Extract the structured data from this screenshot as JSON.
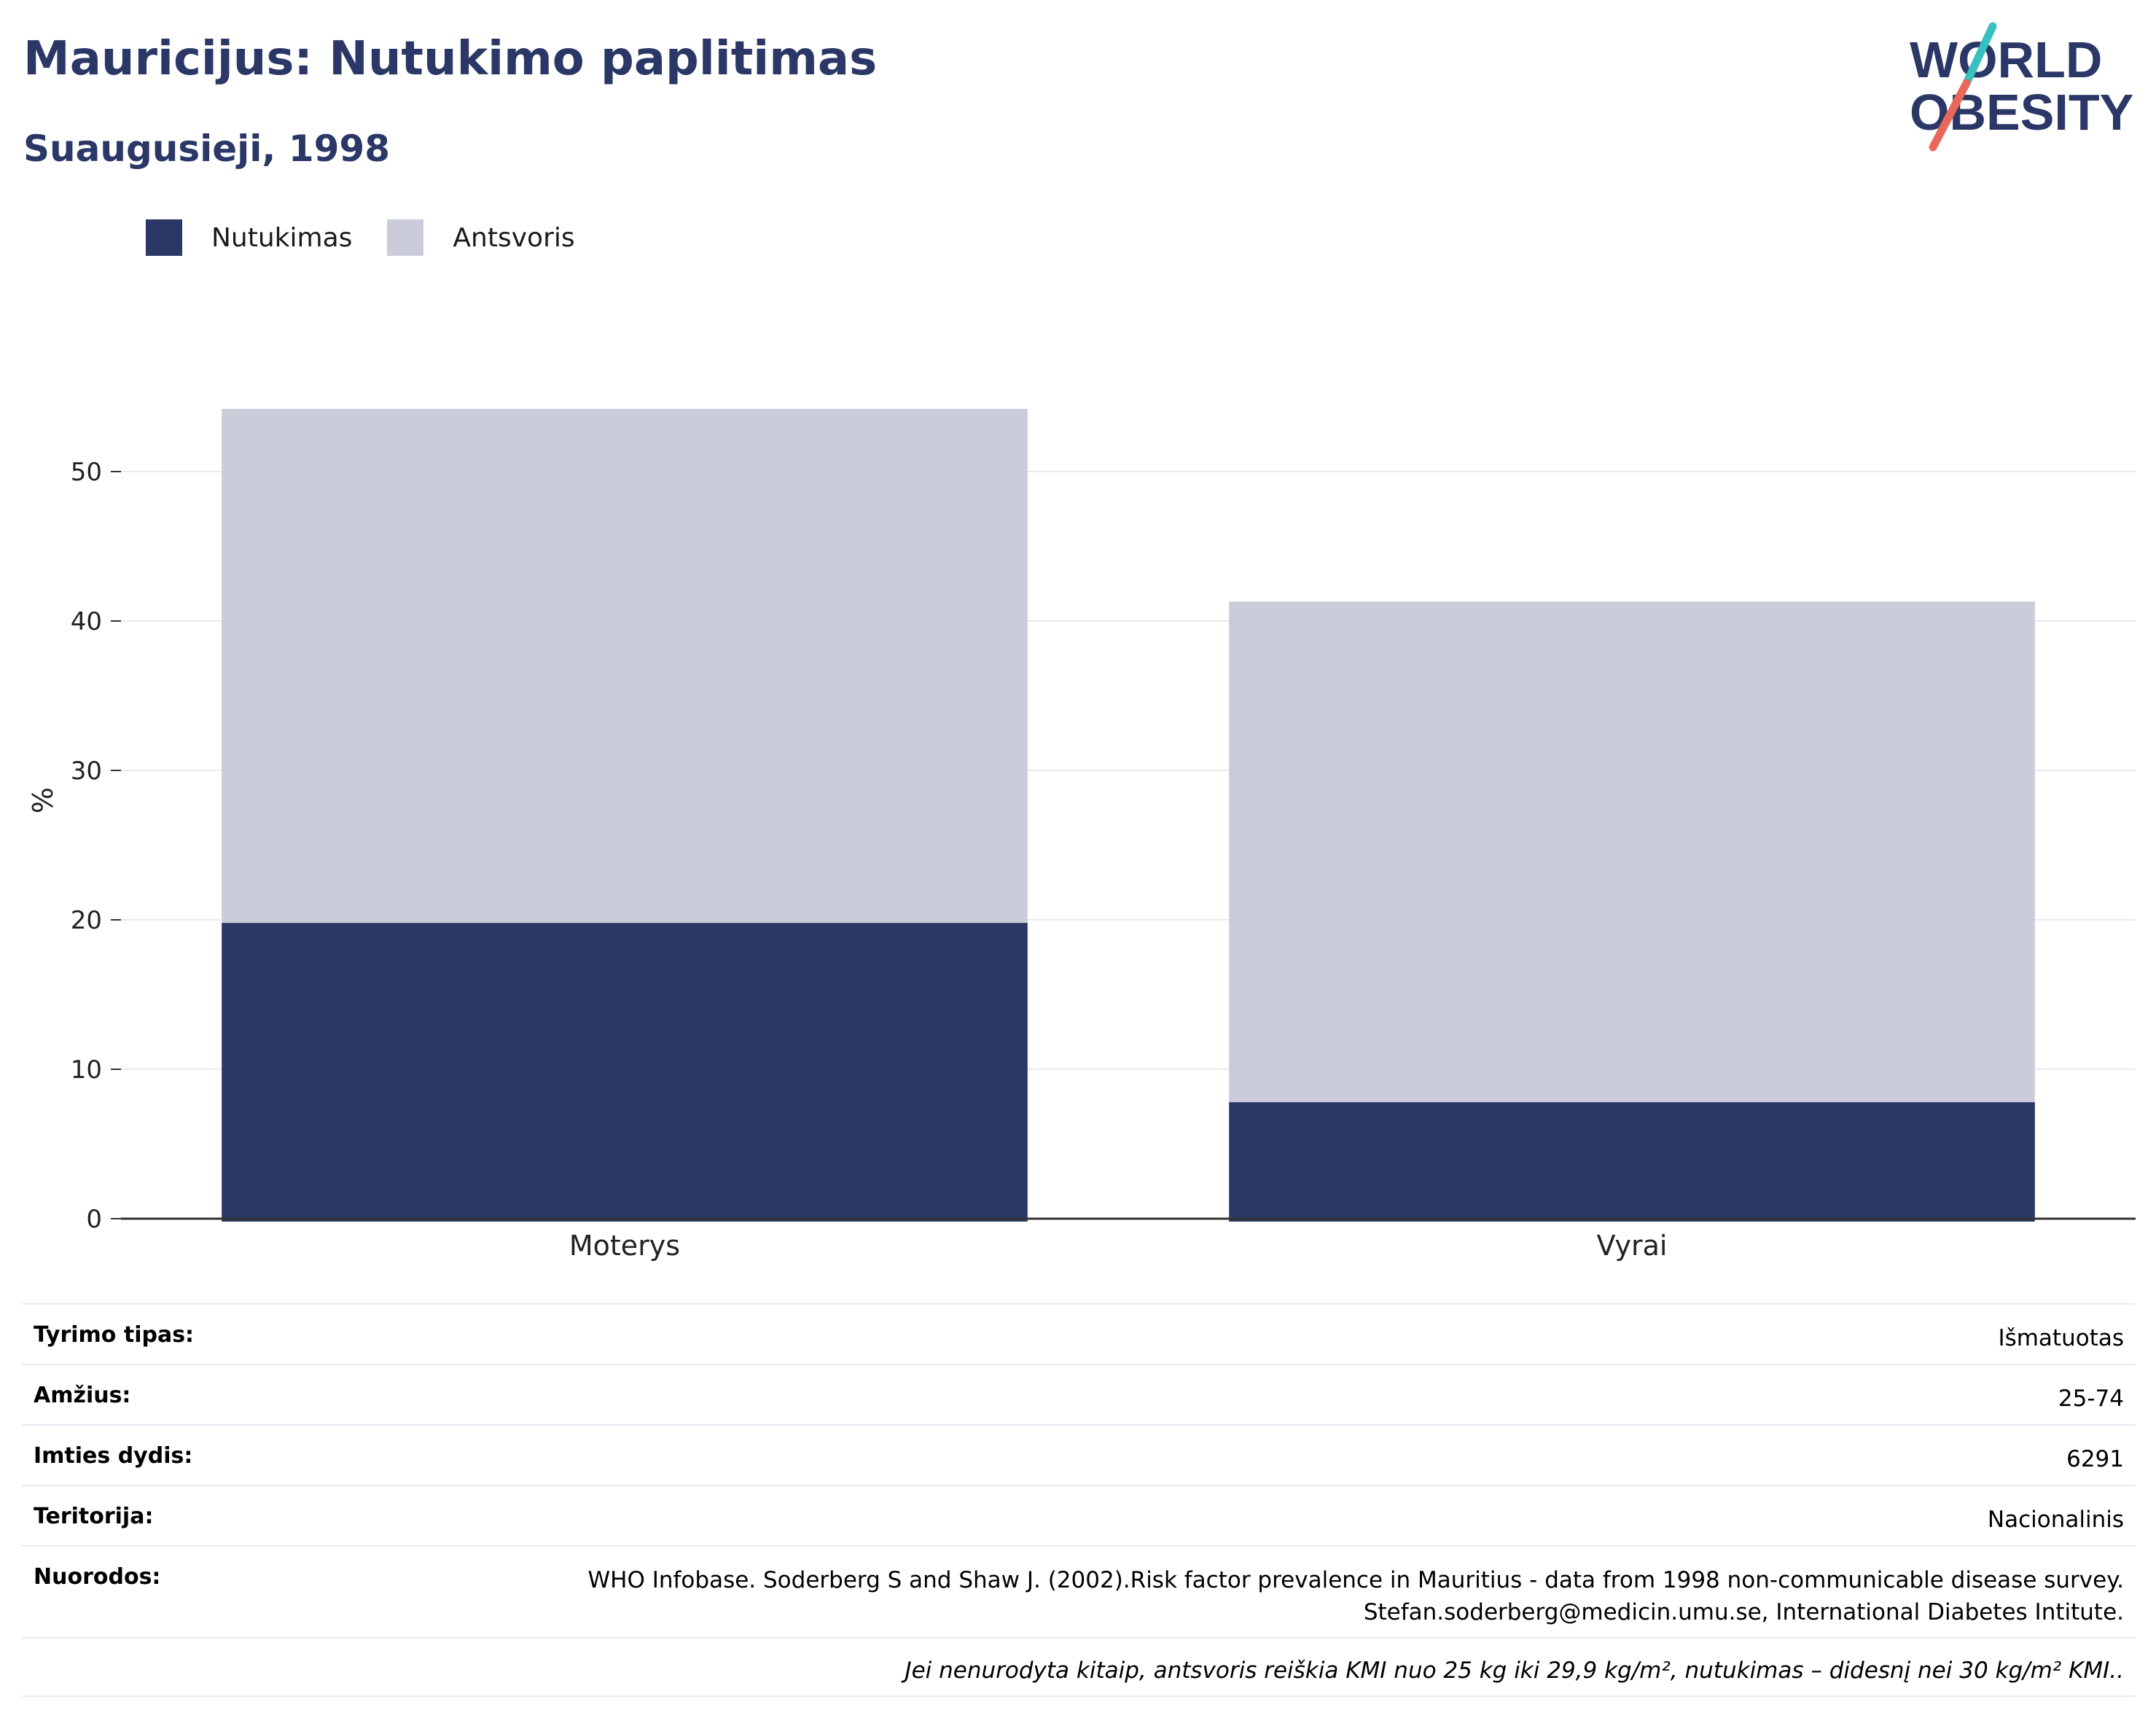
{
  "header": {
    "title": "Mauricijus: Nutukimo paplitimas",
    "subtitle": "Suaugusieji, 1998"
  },
  "logo": {
    "line1": "WORLD",
    "line2": "OBESITY"
  },
  "colors": {
    "obesity": "#2b3766",
    "overweight": "#cacdd9",
    "title": "#2b3766",
    "accent_teal": "#36c0c0",
    "accent_red": "#e8685a"
  },
  "chart_data": {
    "type": "bar",
    "stacked": true,
    "categories": [
      "Moterys",
      "Vyrai"
    ],
    "series": [
      {
        "name": "Nutukimas",
        "values": [
          19.8,
          7.8
        ]
      },
      {
        "name": "Antsvoris",
        "values": [
          34.4,
          33.5
        ]
      }
    ],
    "ylabel": "%",
    "xlabel": "",
    "ylim": [
      0,
      55
    ],
    "yticks": [
      0,
      10,
      20,
      30,
      40,
      50
    ],
    "grid": true,
    "legend_position": "top-left"
  },
  "info": {
    "survey_type": {
      "label": "Tyrimo tipas:",
      "value": "Išmatuotas"
    },
    "age": {
      "label": "Amžius:",
      "value": "25-74"
    },
    "sample_size": {
      "label": "Imties dydis:",
      "value": "6291"
    },
    "territory": {
      "label": "Teritorija:",
      "value": "Nacionalinis"
    },
    "references": {
      "label": "Nuorodos:",
      "line1": "WHO Infobase. Soderberg S and Shaw J. (2002).Risk factor prevalence in Mauritius - data from 1998 non-communicable disease survey.",
      "line2": "Stefan.soderberg@medicin.umu.se, International Diabetes Intitute."
    },
    "note": "Jei nenurodyta kitaip, antsvoris reiškia KMI nuo 25 kg iki 29,9 kg/m², nutukimas – didesnį nei 30 kg/m² KMI.."
  }
}
